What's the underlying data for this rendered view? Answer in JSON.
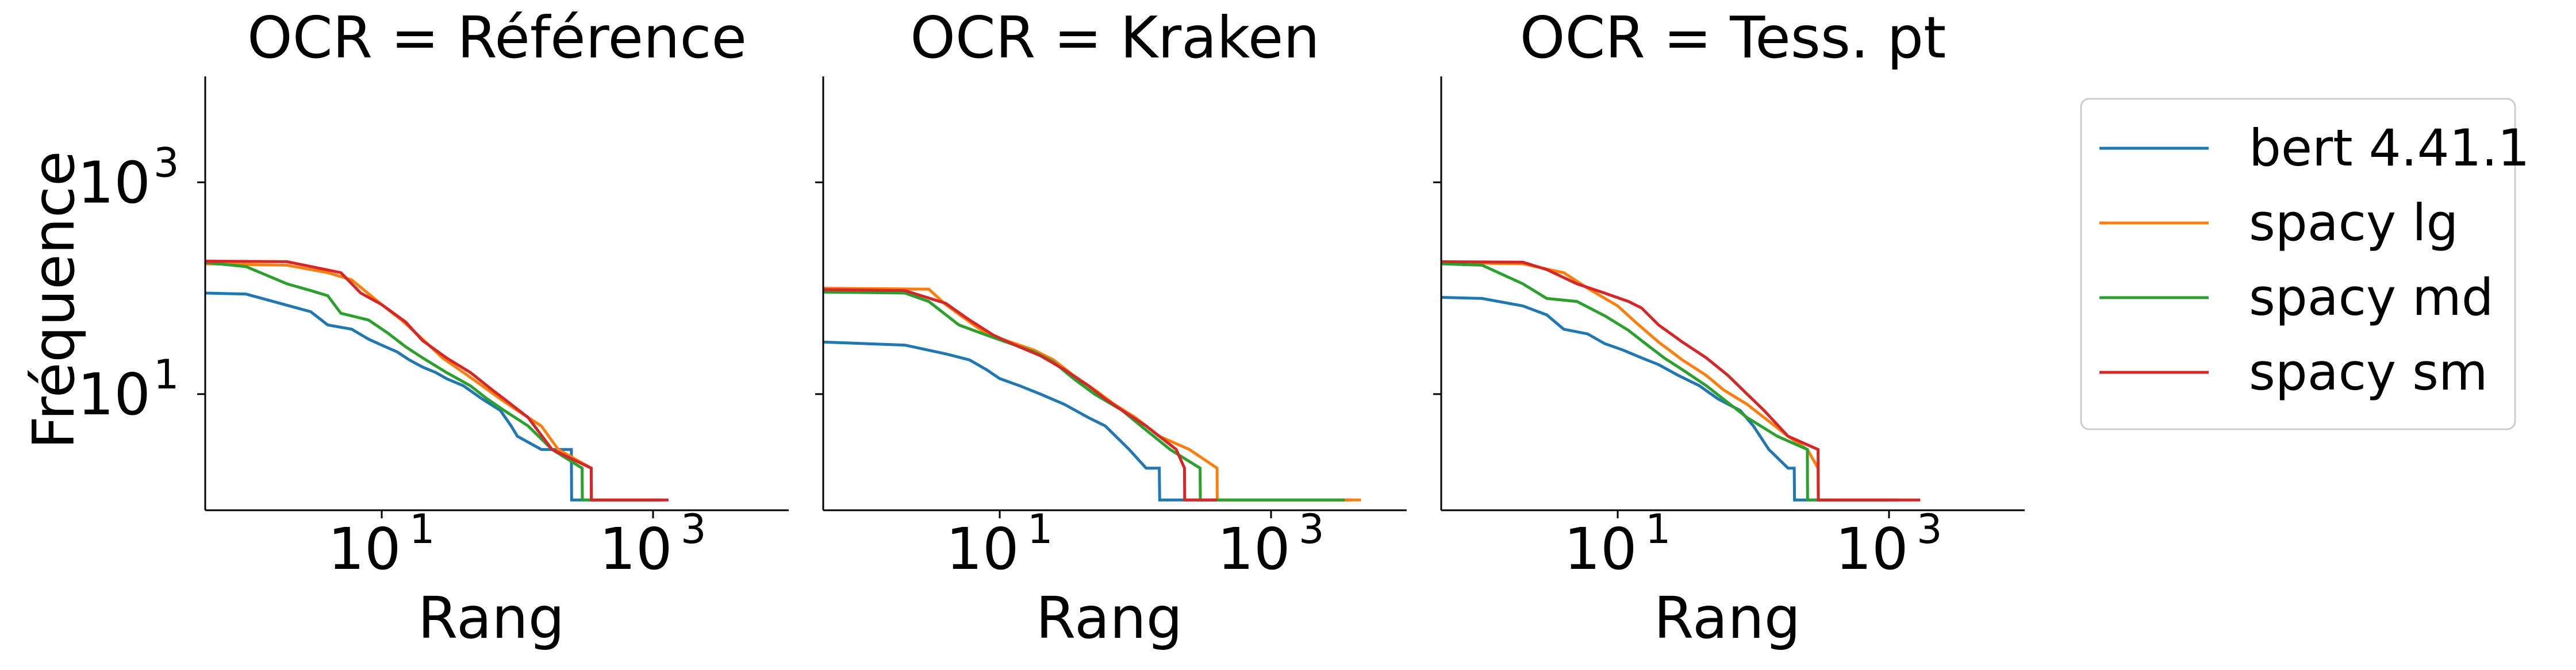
{
  "chart_data": {
    "type": "line",
    "xscale": "log",
    "yscale": "log",
    "xlim": [
      0.5,
      10000
    ],
    "ylim": [
      0.8,
      10000
    ],
    "x_ticks": [
      {
        "base": "10",
        "exp": "1",
        "value": 10
      },
      {
        "base": "10",
        "exp": "3",
        "value": 1000
      }
    ],
    "y_ticks": [
      {
        "base": "10",
        "exp": "1",
        "value": 10
      },
      {
        "base": "10",
        "exp": "3",
        "value": 1000
      }
    ],
    "xlabel": "Rang",
    "ylabel": "Fréquence",
    "sharey": true,
    "legend_position": "right",
    "legend": [
      {
        "name": "bert 4.41.1",
        "color": "#1f77b4"
      },
      {
        "name": "spacy lg",
        "color": "#ff7f0e"
      },
      {
        "name": "spacy md",
        "color": "#2ca02c"
      },
      {
        "name": "spacy sm",
        "color": "#d62728"
      }
    ],
    "panels": [
      {
        "title": "OCR = Référence",
        "series": [
          {
            "name": "bert 4.41.1",
            "color": "#1f77b4",
            "points": [
              [
                0.5,
                90
              ],
              [
                1,
                88
              ],
              [
                3,
                60
              ],
              [
                4,
                45
              ],
              [
                6,
                41
              ],
              [
                8,
                33
              ],
              [
                10,
                29
              ],
              [
                13,
                25
              ],
              [
                16,
                21
              ],
              [
                20,
                18
              ],
              [
                25,
                16
              ],
              [
                30,
                14
              ],
              [
                40,
                12
              ],
              [
                55,
                9
              ],
              [
                75,
                7
              ],
              [
                90,
                5
              ],
              [
                100,
                4
              ],
              [
                150,
                3
              ],
              [
                250,
                3
              ],
              [
                251,
                1
              ],
              [
                1200,
                1
              ]
            ]
          },
          {
            "name": "spacy lg",
            "color": "#ff7f0e",
            "points": [
              [
                0.5,
                170
              ],
              [
                2,
                165
              ],
              [
                4,
                140
              ],
              [
                6,
                120
              ],
              [
                10,
                70
              ],
              [
                14,
                50
              ],
              [
                20,
                33
              ],
              [
                28,
                22
              ],
              [
                40,
                16
              ],
              [
                55,
                12
              ],
              [
                75,
                9
              ],
              [
                100,
                7
              ],
              [
                150,
                5
              ],
              [
                200,
                3
              ],
              [
                350,
                2
              ],
              [
                351,
                1
              ],
              [
                1100,
                1
              ]
            ]
          },
          {
            "name": "spacy md",
            "color": "#2ca02c",
            "points": [
              [
                0.5,
                175
              ],
              [
                1,
                160
              ],
              [
                2,
                110
              ],
              [
                3,
                95
              ],
              [
                4,
                85
              ],
              [
                5,
                58
              ],
              [
                8,
                50
              ],
              [
                11,
                38
              ],
              [
                15,
                28
              ],
              [
                20,
                22
              ],
              [
                30,
                16
              ],
              [
                45,
                12
              ],
              [
                60,
                9
              ],
              [
                80,
                7
              ],
              [
                120,
                5
              ],
              [
                180,
                3
              ],
              [
                300,
                2
              ],
              [
                301,
                1
              ],
              [
                1150,
                1
              ]
            ]
          },
          {
            "name": "spacy sm",
            "color": "#d62728",
            "points": [
              [
                0.5,
                180
              ],
              [
                2,
                178
              ],
              [
                5,
                140
              ],
              [
                7,
                90
              ],
              [
                10,
                70
              ],
              [
                15,
                48
              ],
              [
                20,
                32
              ],
              [
                30,
                22
              ],
              [
                45,
                16
              ],
              [
                65,
                11
              ],
              [
                90,
                8
              ],
              [
                120,
                6
              ],
              [
                180,
                3
              ],
              [
                350,
                2
              ],
              [
                351,
                1
              ],
              [
                1300,
                1
              ]
            ]
          }
        ]
      },
      {
        "title": "OCR = Kraken",
        "series": [
          {
            "name": "bert 4.41.1",
            "color": "#1f77b4",
            "points": [
              [
                0.5,
                31
              ],
              [
                2,
                29
              ],
              [
                4,
                24
              ],
              [
                6,
                21
              ],
              [
                8,
                17
              ],
              [
                10,
                14
              ],
              [
                14,
                12
              ],
              [
                20,
                10
              ],
              [
                30,
                8
              ],
              [
                45,
                6
              ],
              [
                60,
                5
              ],
              [
                90,
                3
              ],
              [
                120,
                2
              ],
              [
                150,
                2
              ],
              [
                151,
                1
              ],
              [
                4000,
                1
              ]
            ]
          },
          {
            "name": "spacy lg",
            "color": "#ff7f0e",
            "points": [
              [
                0.5,
                100
              ],
              [
                3,
                98
              ],
              [
                4,
                70
              ],
              [
                6,
                48
              ],
              [
                8,
                37
              ],
              [
                12,
                31
              ],
              [
                18,
                26
              ],
              [
                25,
                21
              ],
              [
                35,
                15
              ],
              [
                50,
                11
              ],
              [
                70,
                8
              ],
              [
                100,
                6
              ],
              [
                150,
                4
              ],
              [
                250,
                3
              ],
              [
                400,
                2
              ],
              [
                401,
                1
              ],
              [
                4600,
                1
              ]
            ]
          },
          {
            "name": "spacy md",
            "color": "#2ca02c",
            "points": [
              [
                0.5,
                92
              ],
              [
                2,
                90
              ],
              [
                3,
                75
              ],
              [
                5,
                45
              ],
              [
                8,
                36
              ],
              [
                12,
                30
              ],
              [
                18,
                25
              ],
              [
                25,
                20
              ],
              [
                35,
                14
              ],
              [
                50,
                10
              ],
              [
                80,
                7
              ],
              [
                110,
                5
              ],
              [
                180,
                3
              ],
              [
                300,
                2
              ],
              [
                301,
                1
              ],
              [
                3500,
                1
              ]
            ]
          },
          {
            "name": "spacy sm",
            "color": "#d62728",
            "points": [
              [
                0.5,
                97
              ],
              [
                2,
                95
              ],
              [
                4,
                72
              ],
              [
                6,
                50
              ],
              [
                9,
                36
              ],
              [
                13,
                29
              ],
              [
                20,
                23
              ],
              [
                30,
                17
              ],
              [
                45,
                12
              ],
              [
                60,
                9
              ],
              [
                80,
                7
              ],
              [
                120,
                5
              ],
              [
                200,
                3
              ],
              [
                230,
                2
              ],
              [
                231,
                1
              ],
              [
                400,
                1
              ]
            ]
          }
        ]
      },
      {
        "title": "OCR = Tess. pt",
        "series": [
          {
            "name": "bert 4.41.1",
            "color": "#1f77b4",
            "points": [
              [
                0.5,
                82
              ],
              [
                1,
                80
              ],
              [
                2,
                68
              ],
              [
                3,
                56
              ],
              [
                4,
                41
              ],
              [
                6,
                37
              ],
              [
                8,
                30
              ],
              [
                11,
                26
              ],
              [
                15,
                22
              ],
              [
                20,
                19
              ],
              [
                28,
                15
              ],
              [
                40,
                12
              ],
              [
                55,
                9
              ],
              [
                80,
                7
              ],
              [
                100,
                5
              ],
              [
                130,
                3
              ],
              [
                180,
                2
              ],
              [
                200,
                2
              ],
              [
                201,
                1
              ],
              [
                1200,
                1
              ]
            ]
          },
          {
            "name": "spacy lg",
            "color": "#ff7f0e",
            "points": [
              [
                0.5,
                175
              ],
              [
                2,
                170
              ],
              [
                4,
                140
              ],
              [
                6,
                100
              ],
              [
                10,
                68
              ],
              [
                14,
                46
              ],
              [
                20,
                31
              ],
              [
                30,
                21
              ],
              [
                45,
                15
              ],
              [
                60,
                11
              ],
              [
                90,
                8
              ],
              [
                120,
                6
              ],
              [
                180,
                4
              ],
              [
                250,
                3
              ],
              [
                300,
                2
              ],
              [
                301,
                1
              ],
              [
                1200,
                1
              ]
            ]
          },
          {
            "name": "spacy md",
            "color": "#2ca02c",
            "points": [
              [
                0.5,
                170
              ],
              [
                1,
                165
              ],
              [
                2,
                110
              ],
              [
                3,
                80
              ],
              [
                5,
                75
              ],
              [
                8,
                55
              ],
              [
                12,
                40
              ],
              [
                16,
                30
              ],
              [
                22,
                22
              ],
              [
                30,
                17
              ],
              [
                45,
                12
              ],
              [
                60,
                9
              ],
              [
                90,
                6
              ],
              [
                150,
                4
              ],
              [
                250,
                3
              ],
              [
                251,
                1
              ],
              [
                1000,
                1
              ]
            ]
          },
          {
            "name": "spacy sm",
            "color": "#d62728",
            "points": [
              [
                0.5,
                178
              ],
              [
                2,
                176
              ],
              [
                3,
                150
              ],
              [
                5,
                110
              ],
              [
                8,
                90
              ],
              [
                12,
                75
              ],
              [
                15,
                65
              ],
              [
                20,
                45
              ],
              [
                30,
                31
              ],
              [
                45,
                22
              ],
              [
                65,
                15
              ],
              [
                90,
                10
              ],
              [
                120,
                7
              ],
              [
                180,
                4
              ],
              [
                300,
                3
              ],
              [
                301,
                1
              ],
              [
                1700,
                1
              ]
            ]
          }
        ]
      }
    ]
  }
}
